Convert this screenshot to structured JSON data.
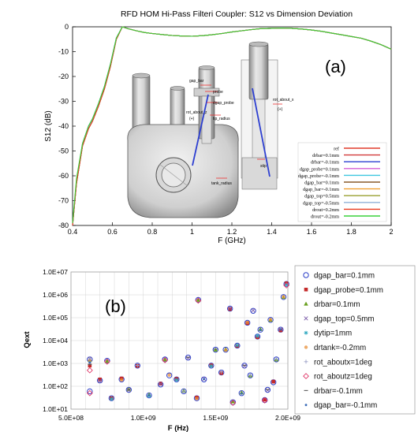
{
  "chart_data": [
    {
      "type": "line",
      "panel_label": "(a)",
      "title": "RFD HOM Hi-Pass Filteri Coupler: S12 vs Dimension Deviation",
      "xlabel": "F (GHz)",
      "ylabel": "S12 (dB)",
      "xlim": [
        0.4,
        2.0
      ],
      "ylim": [
        -80,
        0
      ],
      "xticks": [
        "0.4",
        "0.6",
        "0.8",
        "1",
        "1.2",
        "1.4",
        "1.6",
        "1.8",
        "2"
      ],
      "yticks": [
        "0",
        "-10",
        "-20",
        "-30",
        "-40",
        "-50",
        "-60",
        "-70",
        "-80"
      ],
      "grid": false,
      "legend_position": "bottom-right, inside plot",
      "inset_labels": [
        "gap_bar",
        "probe",
        "dgap_probe",
        "rot_about_z",
        "(+)",
        "tip_radius",
        "tank_radius",
        "rot_about_x",
        "(+)",
        "stip"
      ],
      "x": [
        0.4,
        0.42,
        0.45,
        0.48,
        0.5,
        0.53,
        0.56,
        0.59,
        0.62,
        0.65,
        0.68,
        0.72,
        0.76,
        0.8,
        0.85,
        0.9,
        0.95,
        1.0,
        1.05,
        1.1,
        1.15,
        1.2,
        1.25,
        1.3,
        1.35,
        1.4,
        1.45,
        1.5,
        1.55,
        1.6,
        1.65,
        1.7,
        1.75,
        1.8,
        1.85,
        1.9,
        1.95,
        2.0
      ],
      "series": [
        {
          "name": "ref",
          "color": "#e03a2a",
          "values": [
            -80,
            -63,
            -48,
            -41,
            -38,
            -32,
            -25,
            -16,
            -5,
            0,
            -0.8,
            -1.6,
            -2.3,
            -2.7,
            -3.1,
            -3.5,
            -3.7,
            -3.8,
            -3.6,
            -3.2,
            -2.7,
            -2.1,
            -1.6,
            -1.1,
            -0.7,
            -0.6,
            -0.5,
            -0.6,
            -0.9,
            -1.3,
            -1.8,
            -2.5,
            -3.2,
            -3.9,
            -4.6,
            -5.8,
            -7.2,
            -9.0
          ]
        },
        {
          "name": "drbar=0.1mm",
          "color": "#d23b3b",
          "values": [
            -80,
            -63,
            -48,
            -41,
            -38,
            -32,
            -25,
            -16,
            -5,
            0,
            -0.8,
            -1.6,
            -2.3,
            -2.7,
            -3.1,
            -3.5,
            -3.7,
            -3.8,
            -3.6,
            -3.2,
            -2.7,
            -2.1,
            -1.6,
            -1.1,
            -0.7,
            -0.6,
            -0.5,
            -0.6,
            -0.9,
            -1.3,
            -1.8,
            -2.5,
            -3.2,
            -3.9,
            -4.6,
            -5.8,
            -7.2,
            -9.0
          ]
        },
        {
          "name": "drbar=-0.1mm",
          "color": "#2a3fd1",
          "values": [
            -80,
            -62,
            -47,
            -40,
            -37,
            -31,
            -24,
            -15,
            -4.5,
            0,
            -0.8,
            -1.6,
            -2.3,
            -2.7,
            -3.1,
            -3.5,
            -3.7,
            -3.8,
            -3.6,
            -3.2,
            -2.7,
            -2.1,
            -1.6,
            -1.1,
            -0.7,
            -0.6,
            -0.5,
            -0.6,
            -0.9,
            -1.3,
            -1.8,
            -2.5,
            -3.2,
            -3.9,
            -4.6,
            -5.8,
            -7.2,
            -9.0
          ]
        },
        {
          "name": "dgap_probe=0.1mm",
          "color": "#d45fd4",
          "values": [
            -80,
            -63,
            -48,
            -41,
            -38,
            -32,
            -25,
            -16,
            -5,
            0,
            -0.8,
            -1.6,
            -2.3,
            -2.7,
            -3.1,
            -3.5,
            -3.7,
            -3.8,
            -3.6,
            -3.2,
            -2.7,
            -2.1,
            -1.6,
            -1.1,
            -0.7,
            -0.6,
            -0.5,
            -0.6,
            -0.9,
            -1.3,
            -1.8,
            -2.5,
            -3.2,
            -3.9,
            -4.6,
            -5.8,
            -7.2,
            -9.0
          ]
        },
        {
          "name": "dgap_probe=-0.1mm",
          "color": "#3fc7e0",
          "values": [
            -80,
            -63,
            -48,
            -41,
            -38,
            -32,
            -25,
            -16,
            -5,
            0,
            -0.8,
            -1.6,
            -2.3,
            -2.7,
            -3.1,
            -3.5,
            -3.7,
            -3.8,
            -3.6,
            -3.2,
            -2.7,
            -2.1,
            -1.6,
            -1.1,
            -0.7,
            -0.6,
            -0.5,
            -0.6,
            -0.9,
            -1.3,
            -1.8,
            -2.5,
            -3.2,
            -3.9,
            -4.6,
            -5.8,
            -7.2,
            -9.0
          ]
        },
        {
          "name": "dgap_bar=0.1mm",
          "color": "#8a5a2a",
          "values": [
            -80,
            -63,
            -48,
            -41,
            -38,
            -32,
            -25,
            -16,
            -5,
            0,
            -0.8,
            -1.6,
            -2.3,
            -2.7,
            -3.1,
            -3.5,
            -3.7,
            -3.8,
            -3.6,
            -3.2,
            -2.7,
            -2.1,
            -1.6,
            -1.1,
            -0.7,
            -0.6,
            -0.5,
            -0.6,
            -0.9,
            -1.3,
            -1.8,
            -2.5,
            -3.2,
            -3.9,
            -4.6,
            -5.8,
            -7.2,
            -9.0
          ]
        },
        {
          "name": "dgap_bar=-0.1mm",
          "color": "#f0a030",
          "values": [
            -80,
            -63,
            -48,
            -41,
            -38,
            -32,
            -25,
            -16,
            -5,
            0,
            -0.8,
            -1.6,
            -2.3,
            -2.7,
            -3.1,
            -3.5,
            -3.7,
            -3.8,
            -3.6,
            -3.2,
            -2.7,
            -2.1,
            -1.6,
            -1.1,
            -0.7,
            -0.6,
            -0.5,
            -0.6,
            -0.9,
            -1.3,
            -1.8,
            -2.5,
            -3.2,
            -3.9,
            -4.6,
            -5.8,
            -7.2,
            -9.0
          ]
        },
        {
          "name": "dgap_top=0.5mm",
          "color": "#9aa030",
          "values": [
            -80,
            -63,
            -48,
            -41,
            -38,
            -32,
            -25,
            -16,
            -5,
            0,
            -0.8,
            -1.6,
            -2.3,
            -2.7,
            -3.1,
            -3.5,
            -3.7,
            -3.8,
            -3.6,
            -3.2,
            -2.7,
            -2.1,
            -1.6,
            -1.1,
            -0.7,
            -0.6,
            -0.5,
            -0.6,
            -0.9,
            -1.3,
            -1.8,
            -2.5,
            -3.2,
            -3.9,
            -4.6,
            -5.8,
            -7.2,
            -9.0
          ]
        },
        {
          "name": "dgap_top=-0.5mm",
          "color": "#8fb0d8",
          "values": [
            -80,
            -63,
            -48,
            -41,
            -38,
            -32,
            -25,
            -16,
            -5,
            0,
            -0.8,
            -1.6,
            -2.3,
            -2.7,
            -3.1,
            -3.5,
            -3.7,
            -3.8,
            -3.6,
            -3.2,
            -2.7,
            -2.1,
            -1.6,
            -1.1,
            -0.7,
            -0.6,
            -0.5,
            -0.6,
            -0.9,
            -1.3,
            -1.8,
            -2.5,
            -3.2,
            -3.9,
            -4.6,
            -5.8,
            -7.2,
            -9.0
          ]
        },
        {
          "name": "drout=0.2mm",
          "color": "#e83a1e",
          "values": [
            -80,
            -63,
            -48,
            -41,
            -38,
            -32,
            -25,
            -16,
            -5,
            0,
            -0.8,
            -1.6,
            -2.3,
            -2.7,
            -3.1,
            -3.5,
            -3.7,
            -3.8,
            -3.6,
            -3.2,
            -2.7,
            -2.1,
            -1.6,
            -1.1,
            -0.7,
            -0.6,
            -0.5,
            -0.6,
            -0.9,
            -1.3,
            -1.8,
            -2.5,
            -3.2,
            -3.9,
            -4.6,
            -5.8,
            -7.2,
            -9.0
          ]
        },
        {
          "name": "drout=-0.2mm",
          "color": "#3ad23a",
          "values": [
            -79,
            -61,
            -47,
            -40,
            -37,
            -31,
            -24,
            -15,
            -4.5,
            0,
            -0.8,
            -1.6,
            -2.3,
            -2.7,
            -3.1,
            -3.5,
            -3.7,
            -3.8,
            -3.6,
            -3.2,
            -2.7,
            -2.1,
            -1.6,
            -1.1,
            -0.7,
            -0.6,
            -0.5,
            -0.6,
            -0.9,
            -1.3,
            -1.8,
            -2.5,
            -3.2,
            -3.9,
            -4.6,
            -5.8,
            -7.2,
            -9.0
          ]
        }
      ]
    },
    {
      "type": "scatter",
      "panel_label": "(b)",
      "title": "",
      "xlabel": "F (Hz)",
      "ylabel": "Qext",
      "xlim": [
        500000000,
        2000000000
      ],
      "ylim": [
        10,
        10000000
      ],
      "yscale": "log",
      "xticks": [
        "5.0E+08",
        "1.0E+09",
        "1.5E+09",
        "2.0E+09"
      ],
      "yticks": [
        "1.0E+07",
        "1.0E+06",
        "1.0E+05",
        "1.0E+04",
        "1.0E+03",
        "1.0E+02",
        "1.0E+01"
      ],
      "grid": true,
      "legend_position": "right, outside plot",
      "series": [
        {
          "name": "dgap_bar=0.1mm",
          "color": "#2d3fc8",
          "marker": "circle-open",
          "x": [
            630000000,
            630000000,
            700000000,
            750000000,
            780000000,
            850000000,
            900000000,
            960000000,
            1040000000,
            1120000000,
            1150000000,
            1180000000,
            1230000000,
            1280000000,
            1310000000,
            1370000000,
            1380000000,
            1420000000,
            1470000000,
            1500000000,
            1540000000,
            1570000000,
            1600000000,
            1620000000,
            1650000000,
            1680000000,
            1700000000,
            1720000000,
            1740000000,
            1760000000,
            1790000000,
            1810000000,
            1840000000,
            1860000000,
            1880000000,
            1900000000,
            1920000000,
            1950000000,
            1970000000,
            1990000000
          ],
          "y": [
            1500,
            60,
            180,
            1300,
            30,
            200,
            70,
            800,
            40,
            120,
            1500,
            300,
            200,
            60,
            1800,
            30,
            600000,
            200,
            800,
            4000,
            400,
            4000,
            250000,
            20,
            6000,
            50,
            800,
            60000,
            300,
            200000,
            15000,
            30000,
            25,
            70,
            80000,
            150,
            1500,
            30000,
            800000,
            3000000
          ]
        },
        {
          "name": "dgap_probe=0.1mm",
          "color": "#c42a2a",
          "marker": "square",
          "x": [
            630000000,
            700000000,
            780000000,
            850000000,
            960000000,
            1120000000,
            1230000000,
            1370000000,
            1470000000,
            1540000000,
            1600000000,
            1650000000,
            1720000000,
            1790000000,
            1840000000,
            1900000000,
            1950000000,
            1990000000
          ],
          "y": [
            800,
            200,
            30,
            220,
            780,
            130,
            210,
            32,
            820,
            380,
            240000,
            5800,
            58000,
            14000,
            26,
            160,
            28000,
            3200000
          ]
        },
        {
          "name": "drbar=0.1mm",
          "color": "#6aa020",
          "marker": "triangle",
          "x": [
            630000000,
            750000000,
            900000000,
            1040000000,
            1150000000,
            1280000000,
            1380000000,
            1500000000,
            1570000000,
            1620000000,
            1680000000,
            1740000000,
            1810000000,
            1880000000,
            1920000000,
            1970000000
          ],
          "y": [
            1400,
            1250,
            72,
            42,
            1450,
            62,
            580000,
            3900,
            4100,
            21,
            52,
            290,
            31000,
            78000,
            1450,
            780000
          ]
        },
        {
          "name": "dgap_top=0.5mm",
          "color": "#7a5aa8",
          "marker": "x",
          "x": [
            630000000,
            700000000,
            900000000,
            1120000000,
            1310000000,
            1420000000,
            1600000000,
            1700000000,
            1760000000,
            1860000000,
            1950000000
          ],
          "y": [
            1600,
            170,
            68,
            125,
            1750,
            210,
            260000,
            780,
            210000,
            68,
            32000
          ]
        },
        {
          "name": "dytip=1mm",
          "color": "#30a8c0",
          "marker": "star",
          "x": [
            630000000,
            780000000,
            1040000000,
            1230000000,
            1470000000,
            1650000000,
            1790000000,
            1990000000
          ],
          "y": [
            1200,
            28,
            38,
            190,
            760,
            6200,
            16000,
            2800000
          ]
        },
        {
          "name": "drtank=-0.2mm",
          "color": "#e8903a",
          "marker": "circle-small",
          "x": [
            630000000,
            850000000,
            1180000000,
            1370000000,
            1570000000,
            1720000000,
            1880000000,
            1970000000
          ],
          "y": [
            1300,
            190,
            310,
            29,
            3800,
            62000,
            82000,
            820000
          ]
        },
        {
          "name": "rot_aboutx=1deg",
          "color": "#9aa0c8",
          "marker": "plus",
          "x": [
            630000000,
            960000000,
            1280000000,
            1540000000,
            1740000000,
            1920000000
          ],
          "y": [
            1700,
            820,
            58,
            420,
            310,
            1550
          ]
        },
        {
          "name": "rot_aboutz=1deg",
          "color": "#e03a6a",
          "marker": "diamond-open",
          "x": [
            630000000,
            630000000,
            750000000,
            1150000000,
            1380000000,
            1620000000,
            1840000000,
            1990000000
          ],
          "y": [
            500,
            50,
            1200,
            1400,
            560000,
            19,
            24,
            2600000
          ]
        },
        {
          "name": "drbar=-0.1mm",
          "color": "#5a5a5a",
          "marker": "dash",
          "x": [
            630000000,
            900000000,
            1310000000,
            1500000000,
            1700000000,
            1860000000
          ],
          "y": [
            900,
            75,
            1850,
            4200,
            820,
            72
          ]
        },
        {
          "name": "dgap_bar=-0.1mm",
          "color": "#3a6ab8",
          "marker": "dot",
          "x": [
            630000000,
            1040000000,
            1420000000,
            1680000000,
            1810000000,
            1950000000
          ],
          "y": [
            1100,
            40,
            205,
            48,
            29000,
            31000
          ]
        }
      ]
    }
  ]
}
